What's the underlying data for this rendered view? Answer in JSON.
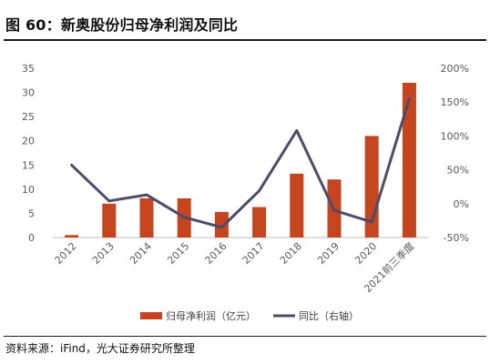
{
  "figure": {
    "title": "图 60：新奥股份归母净利润及同比",
    "source": "资料来源：iFind，光大证券研究所整理"
  },
  "colors": {
    "bar": "#C5451E",
    "line": "#4E4A6B",
    "axis": "#bfbfbf",
    "tick_text": "#595959"
  },
  "chart_data": {
    "type": "bar",
    "categories": [
      "2012",
      "2013",
      "2014",
      "2015",
      "2016",
      "2017",
      "2018",
      "2019",
      "2020",
      "2021前三季度"
    ],
    "series": [
      {
        "name": "归母净利润（亿元）",
        "type": "bar",
        "axis": "left",
        "values": [
          0.5,
          7.0,
          8.1,
          8.1,
          5.3,
          6.3,
          13.2,
          12.0,
          21.0,
          32.0
        ]
      },
      {
        "name": "同比（右轴）",
        "type": "line",
        "axis": "right",
        "values": [
          57,
          4,
          13,
          -20,
          -35,
          19,
          108,
          -10,
          -27,
          155
        ]
      }
    ],
    "left_axis": {
      "ylim": [
        0,
        35
      ],
      "ticks": [
        0,
        5,
        10,
        15,
        20,
        25,
        30,
        35
      ],
      "tick_labels": [
        "0",
        "5",
        "10",
        "15",
        "20",
        "25",
        "30",
        "35"
      ]
    },
    "right_axis": {
      "ylim": [
        -50,
        200
      ],
      "ticks": [
        -50,
        0,
        50,
        100,
        150,
        200
      ],
      "tick_labels": [
        "-50%",
        "0%",
        "50%",
        "100%",
        "150%",
        "200%"
      ]
    },
    "legend_position": "bottom-center",
    "grid": false
  }
}
